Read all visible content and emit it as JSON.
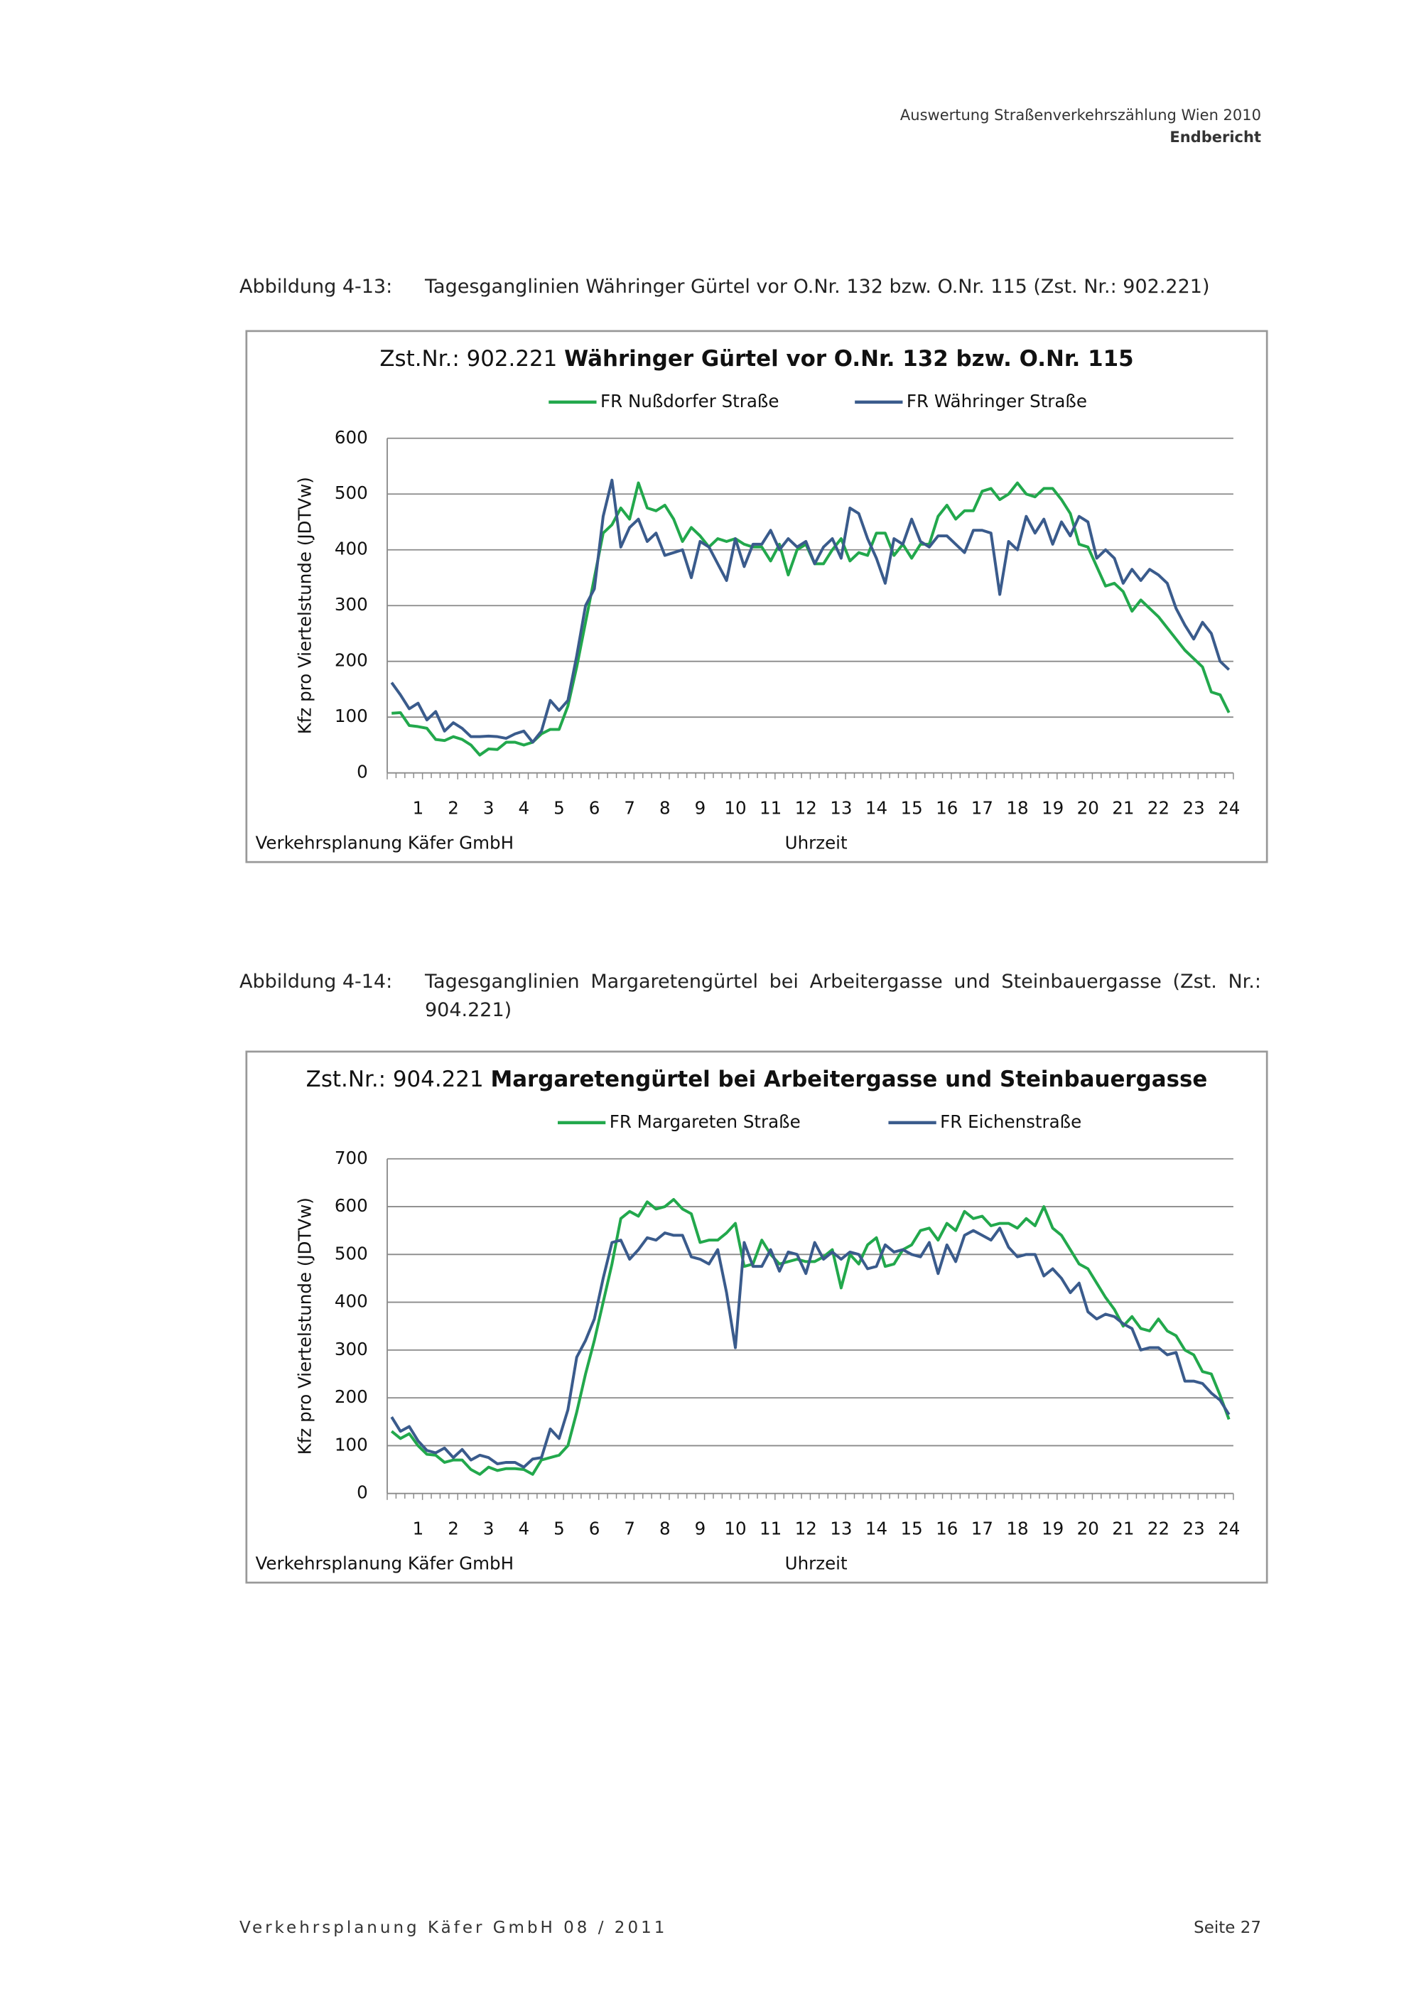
{
  "header": {
    "line1": "Auswertung Straßenverkehrszählung Wien 2010",
    "line2": "Endbericht"
  },
  "figures": [
    {
      "label": "Abbildung 4-13:",
      "text": "Tagesganglinien Währinger Gürtel vor O.Nr. 132 bzw. O.Nr. 115 (Zst. Nr.: 902.221)"
    },
    {
      "label": "Abbildung 4-14:",
      "text": "Tagesganglinien Margaretengürtel bei Arbeitergasse und Steinbauergasse (Zst. Nr.: 904.221)"
    }
  ],
  "chart_data": [
    {
      "type": "line",
      "title_number": "Zst.Nr.: 902.221",
      "title": "Währinger Gürtel vor O.Nr. 132 bzw. O.Nr. 115",
      "y_label": "Kfz pro Viertelstunde (JDTVw)",
      "x_label": "Uhrzeit",
      "source": "Verkehrsplanung Käfer GmbH",
      "ylim": [
        0,
        600
      ],
      "yticks": [
        0,
        100,
        200,
        300,
        400,
        500,
        600
      ],
      "grid": true,
      "legend": "top",
      "categories": [
        null,
        null,
        null,
        "1",
        null,
        null,
        null,
        "2",
        null,
        null,
        null,
        "3",
        null,
        null,
        null,
        "4",
        null,
        null,
        null,
        "5",
        null,
        null,
        null,
        "6",
        null,
        null,
        null,
        "7",
        null,
        null,
        null,
        "8",
        null,
        null,
        null,
        "9",
        null,
        null,
        null,
        "10",
        null,
        null,
        null,
        "11",
        null,
        null,
        null,
        "12",
        null,
        null,
        null,
        "13",
        null,
        null,
        null,
        "14",
        null,
        null,
        null,
        "15",
        null,
        null,
        null,
        "16",
        null,
        null,
        null,
        "17",
        null,
        null,
        null,
        "18",
        null,
        null,
        null,
        "19",
        null,
        null,
        null,
        "20",
        null,
        null,
        null,
        "21",
        null,
        null,
        null,
        "22",
        null,
        null,
        null,
        "23",
        null,
        null,
        null,
        "24"
      ],
      "series": [
        {
          "name": "FR Nußdorfer Straße",
          "color": "#22a84c",
          "values": [
            107,
            108,
            85,
            83,
            80,
            60,
            58,
            65,
            60,
            50,
            32,
            43,
            42,
            55,
            55,
            50,
            55,
            70,
            78,
            78,
            120,
            190,
            270,
            350,
            430,
            445,
            475,
            455,
            520,
            475,
            470,
            480,
            455,
            415,
            440,
            425,
            405,
            420,
            415,
            420,
            410,
            405,
            405,
            380,
            410,
            355,
            400,
            410,
            375,
            375,
            400,
            420,
            380,
            395,
            390,
            430,
            430,
            390,
            410,
            385,
            410,
            410,
            460,
            480,
            455,
            470,
            470,
            505,
            510,
            490,
            500,
            520,
            500,
            495,
            510,
            510,
            490,
            465,
            410,
            405,
            370,
            335,
            340,
            325,
            290,
            310,
            295,
            280,
            260,
            240,
            220,
            205,
            190,
            145,
            140,
            108
          ]
        },
        {
          "name": "FR Währinger Straße",
          "color": "#3a5b8c",
          "values": [
            162,
            140,
            115,
            125,
            95,
            110,
            75,
            90,
            80,
            65,
            65,
            66,
            65,
            62,
            70,
            75,
            55,
            75,
            130,
            112,
            130,
            210,
            300,
            330,
            460,
            525,
            405,
            440,
            455,
            415,
            430,
            390,
            395,
            400,
            350,
            415,
            405,
            375,
            345,
            420,
            370,
            410,
            410,
            435,
            400,
            420,
            405,
            415,
            375,
            405,
            420,
            385,
            475,
            465,
            420,
            385,
            340,
            420,
            410,
            455,
            415,
            405,
            425,
            425,
            410,
            395,
            435,
            435,
            430,
            320,
            415,
            400,
            460,
            430,
            455,
            410,
            450,
            425,
            460,
            450,
            385,
            400,
            385,
            340,
            365,
            345,
            365,
            355,
            340,
            295,
            265,
            240,
            270,
            250,
            200,
            185
          ]
        }
      ]
    },
    {
      "type": "line",
      "title_number": "Zst.Nr.: 904.221",
      "title": "Margaretengürtel bei Arbeitergasse und Steinbauergasse",
      "y_label": "Kfz pro Viertelstunde (JDTVw)",
      "x_label": "Uhrzeit",
      "source": "Verkehrsplanung Käfer GmbH",
      "ylim": [
        0,
        700
      ],
      "yticks": [
        0,
        100,
        200,
        300,
        400,
        500,
        600,
        700
      ],
      "grid": true,
      "legend": "top",
      "categories": [
        null,
        null,
        null,
        "1",
        null,
        null,
        null,
        "2",
        null,
        null,
        null,
        "3",
        null,
        null,
        null,
        "4",
        null,
        null,
        null,
        "5",
        null,
        null,
        null,
        "6",
        null,
        null,
        null,
        "7",
        null,
        null,
        null,
        "8",
        null,
        null,
        null,
        "9",
        null,
        null,
        null,
        "10",
        null,
        null,
        null,
        "11",
        null,
        null,
        null,
        "12",
        null,
        null,
        null,
        "13",
        null,
        null,
        null,
        "14",
        null,
        null,
        null,
        "15",
        null,
        null,
        null,
        "16",
        null,
        null,
        null,
        "17",
        null,
        null,
        null,
        "18",
        null,
        null,
        null,
        "19",
        null,
        null,
        null,
        "20",
        null,
        null,
        null,
        "21",
        null,
        null,
        null,
        "22",
        null,
        null,
        null,
        "23",
        null,
        null,
        null,
        "24"
      ],
      "series": [
        {
          "name": "FR Margareten Straße",
          "color": "#22a84c",
          "values": [
            130,
            115,
            125,
            100,
            82,
            80,
            65,
            70,
            70,
            50,
            40,
            55,
            48,
            52,
            52,
            50,
            40,
            70,
            75,
            80,
            100,
            170,
            250,
            320,
            400,
            480,
            575,
            590,
            580,
            610,
            595,
            600,
            615,
            595,
            585,
            525,
            530,
            530,
            545,
            565,
            475,
            480,
            530,
            500,
            480,
            485,
            490,
            485,
            485,
            495,
            510,
            430,
            500,
            480,
            520,
            535,
            475,
            480,
            510,
            520,
            550,
            555,
            530,
            565,
            550,
            590,
            575,
            580,
            560,
            565,
            565,
            555,
            575,
            560,
            600,
            555,
            540,
            510,
            480,
            470,
            440,
            410,
            385,
            350,
            370,
            345,
            340,
            365,
            340,
            330,
            300,
            290,
            255,
            250,
            205,
            155
          ]
        },
        {
          "name": "FR Eichenstraße",
          "color": "#3a5b8c",
          "values": [
            160,
            130,
            140,
            110,
            90,
            85,
            95,
            75,
            92,
            70,
            80,
            75,
            62,
            65,
            65,
            55,
            72,
            75,
            135,
            115,
            175,
            285,
            320,
            365,
            450,
            525,
            530,
            490,
            510,
            535,
            530,
            545,
            540,
            540,
            495,
            490,
            480,
            510,
            420,
            305,
            525,
            475,
            475,
            510,
            465,
            505,
            500,
            460,
            525,
            490,
            505,
            490,
            505,
            500,
            470,
            475,
            520,
            505,
            510,
            500,
            495,
            525,
            460,
            520,
            485,
            540,
            550,
            540,
            530,
            555,
            515,
            495,
            500,
            500,
            455,
            470,
            450,
            420,
            440,
            380,
            365,
            375,
            370,
            355,
            345,
            300,
            305,
            305,
            290,
            295,
            235,
            235,
            230,
            210,
            195,
            165
          ]
        }
      ]
    }
  ],
  "footer": {
    "left": "Verkehrsplanung Käfer GmbH 08 / 2011",
    "right": "Seite 27"
  }
}
